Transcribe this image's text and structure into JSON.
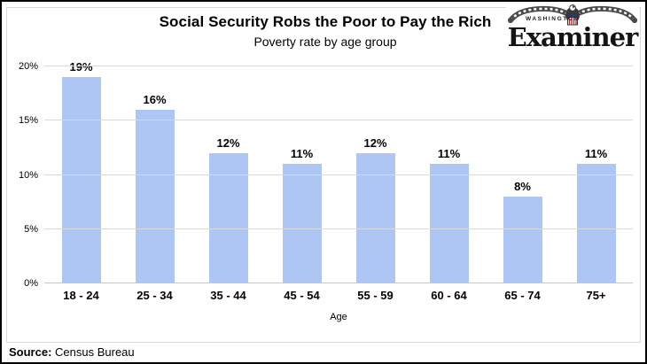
{
  "chart_data": {
    "type": "bar",
    "title": "Social Security Robs the Poor to Pay the Rich",
    "subtitle": "Poverty rate by age group",
    "categories": [
      "18 - 24",
      "25 - 34",
      "35 - 44",
      "45 - 54",
      "55 - 59",
      "60 - 64",
      "65 - 74",
      "75+"
    ],
    "values": [
      19,
      16,
      12,
      11,
      12,
      11,
      8,
      11
    ],
    "value_labels": [
      "19%",
      "16%",
      "12%",
      "11%",
      "12%",
      "11%",
      "8%",
      "11%"
    ],
    "xlabel": "Age",
    "ylabel": "",
    "ylim": [
      0,
      20
    ],
    "yticks": [
      0,
      5,
      10,
      15,
      20
    ],
    "ytick_labels": [
      "0%",
      "5%",
      "10%",
      "15%",
      "20%"
    ],
    "grid": "horizontal",
    "legend": "none",
    "bar_color": "#adc6f3",
    "gridline_color": "#d9d9d9"
  },
  "branding": {
    "masthead_city": "WASHINGTON",
    "masthead_name": "Examiner",
    "eagle_icon": "eagle-icon"
  },
  "source": {
    "label": "Source:",
    "text": " Census Bureau"
  }
}
